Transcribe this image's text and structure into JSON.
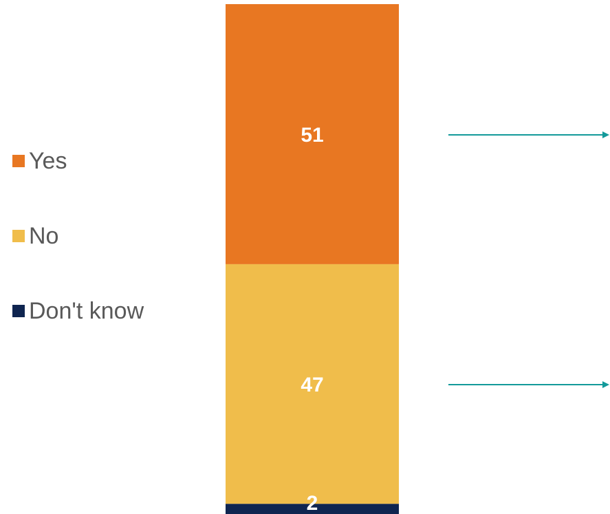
{
  "colors": {
    "yes": "#E87722",
    "no": "#F0BD4B",
    "dont_know": "#0F2550",
    "arrow": "#139A9A"
  },
  "chart_data": {
    "type": "bar",
    "stacked": true,
    "orientation": "vertical",
    "ylim": [
      0,
      100
    ],
    "series": [
      {
        "name": "Yes",
        "value": 51,
        "color": "#E87722"
      },
      {
        "name": "No",
        "value": 47,
        "color": "#F0BD4B"
      },
      {
        "name": "Don't know",
        "value": 2,
        "color": "#0F2550"
      }
    ],
    "legend": {
      "position": "left",
      "items": [
        "Yes",
        "No",
        "Don't know"
      ]
    },
    "annotations": [
      {
        "type": "arrow",
        "points_to": "Yes"
      },
      {
        "type": "arrow",
        "points_to": "No"
      }
    ]
  }
}
